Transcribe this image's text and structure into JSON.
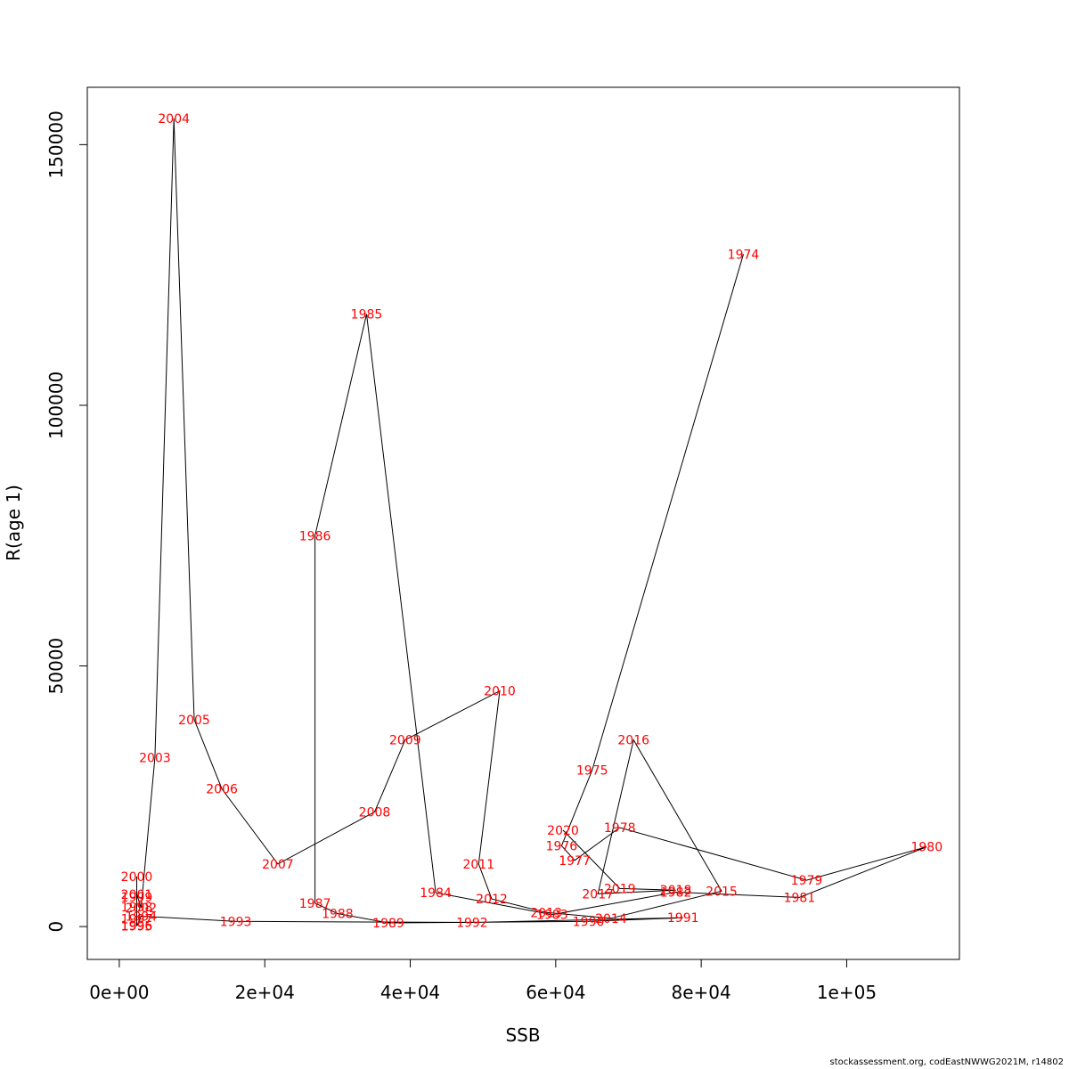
{
  "chart_data": {
    "type": "line",
    "xlabel": "SSB",
    "ylabel": "R(age 1)",
    "xlim": [
      -4400,
      115500
    ],
    "ylim": [
      -6300,
      161000
    ],
    "x_ticks": [
      {
        "value": 0,
        "label": "0e+00"
      },
      {
        "value": 20000,
        "label": "2e+04"
      },
      {
        "value": 40000,
        "label": "4e+04"
      },
      {
        "value": 60000,
        "label": "6e+04"
      },
      {
        "value": 80000,
        "label": "8e+04"
      },
      {
        "value": 100000,
        "label": "1e+05"
      }
    ],
    "y_ticks": [
      {
        "value": 0,
        "label": "0"
      },
      {
        "value": 50000,
        "label": "50000"
      },
      {
        "value": 100000,
        "label": "100000"
      },
      {
        "value": 150000,
        "label": "150000"
      }
    ],
    "line_color": "#000000",
    "label_color": "#ff0000",
    "points": [
      {
        "year": "1974",
        "x": 85800,
        "y": 129000
      },
      {
        "year": "1975",
        "x": 65000,
        "y": 30000
      },
      {
        "year": "1976",
        "x": 60800,
        "y": 15500
      },
      {
        "year": "1977",
        "x": 62600,
        "y": 12700
      },
      {
        "year": "1978",
        "x": 68800,
        "y": 19000
      },
      {
        "year": "1979",
        "x": 94500,
        "y": 8900
      },
      {
        "year": "1980",
        "x": 111000,
        "y": 15300
      },
      {
        "year": "1981",
        "x": 93500,
        "y": 5600
      },
      {
        "year": "1982",
        "x": 76500,
        "y": 6600
      },
      {
        "year": "1983",
        "x": 59500,
        "y": 2300
      },
      {
        "year": "1984",
        "x": 43500,
        "y": 6500
      },
      {
        "year": "1985",
        "x": 34000,
        "y": 117500
      },
      {
        "year": "1986",
        "x": 26900,
        "y": 75000
      },
      {
        "year": "1987",
        "x": 26900,
        "y": 4500
      },
      {
        "year": "1988",
        "x": 30000,
        "y": 2500
      },
      {
        "year": "1989",
        "x": 37000,
        "y": 700
      },
      {
        "year": "1990",
        "x": 64500,
        "y": 1000
      },
      {
        "year": "1991",
        "x": 77500,
        "y": 1700
      },
      {
        "year": "1992",
        "x": 48500,
        "y": 800
      },
      {
        "year": "1993",
        "x": 16000,
        "y": 1000
      },
      {
        "year": "1994",
        "x": 3000,
        "y": 2000
      },
      {
        "year": "1995",
        "x": 2400,
        "y": 100
      },
      {
        "year": "1996",
        "x": 2400,
        "y": 200
      },
      {
        "year": "1997",
        "x": 2400,
        "y": 1500
      },
      {
        "year": "1998",
        "x": 2400,
        "y": 3800
      },
      {
        "year": "1999",
        "x": 2400,
        "y": 5700
      },
      {
        "year": "2000",
        "x": 2400,
        "y": 9600
      },
      {
        "year": "2001",
        "x": 2400,
        "y": 6200
      },
      {
        "year": "2002",
        "x": 3000,
        "y": 3600
      },
      {
        "year": "2003",
        "x": 4900,
        "y": 32400
      },
      {
        "year": "2004",
        "x": 7500,
        "y": 155000
      },
      {
        "year": "2005",
        "x": 10300,
        "y": 39700
      },
      {
        "year": "2006",
        "x": 14100,
        "y": 26400
      },
      {
        "year": "2007",
        "x": 21800,
        "y": 12000
      },
      {
        "year": "2008",
        "x": 35100,
        "y": 22000
      },
      {
        "year": "2009",
        "x": 39300,
        "y": 35800
      },
      {
        "year": "2010",
        "x": 52300,
        "y": 45200
      },
      {
        "year": "2011",
        "x": 49400,
        "y": 12000
      },
      {
        "year": "2012",
        "x": 51200,
        "y": 5300
      },
      {
        "year": "2013",
        "x": 58700,
        "y": 2700
      },
      {
        "year": "2014",
        "x": 67600,
        "y": 1600
      },
      {
        "year": "2015",
        "x": 82800,
        "y": 6800
      },
      {
        "year": "2016",
        "x": 70700,
        "y": 35800
      },
      {
        "year": "2017",
        "x": 65800,
        "y": 6300
      },
      {
        "year": "2018",
        "x": 76500,
        "y": 7000
      },
      {
        "year": "2019",
        "x": 68800,
        "y": 7300
      },
      {
        "year": "2020",
        "x": 61000,
        "y": 18500
      }
    ]
  },
  "footer": {
    "credit": "stockassessment.org, codEastNWWG2021M, r14802"
  }
}
